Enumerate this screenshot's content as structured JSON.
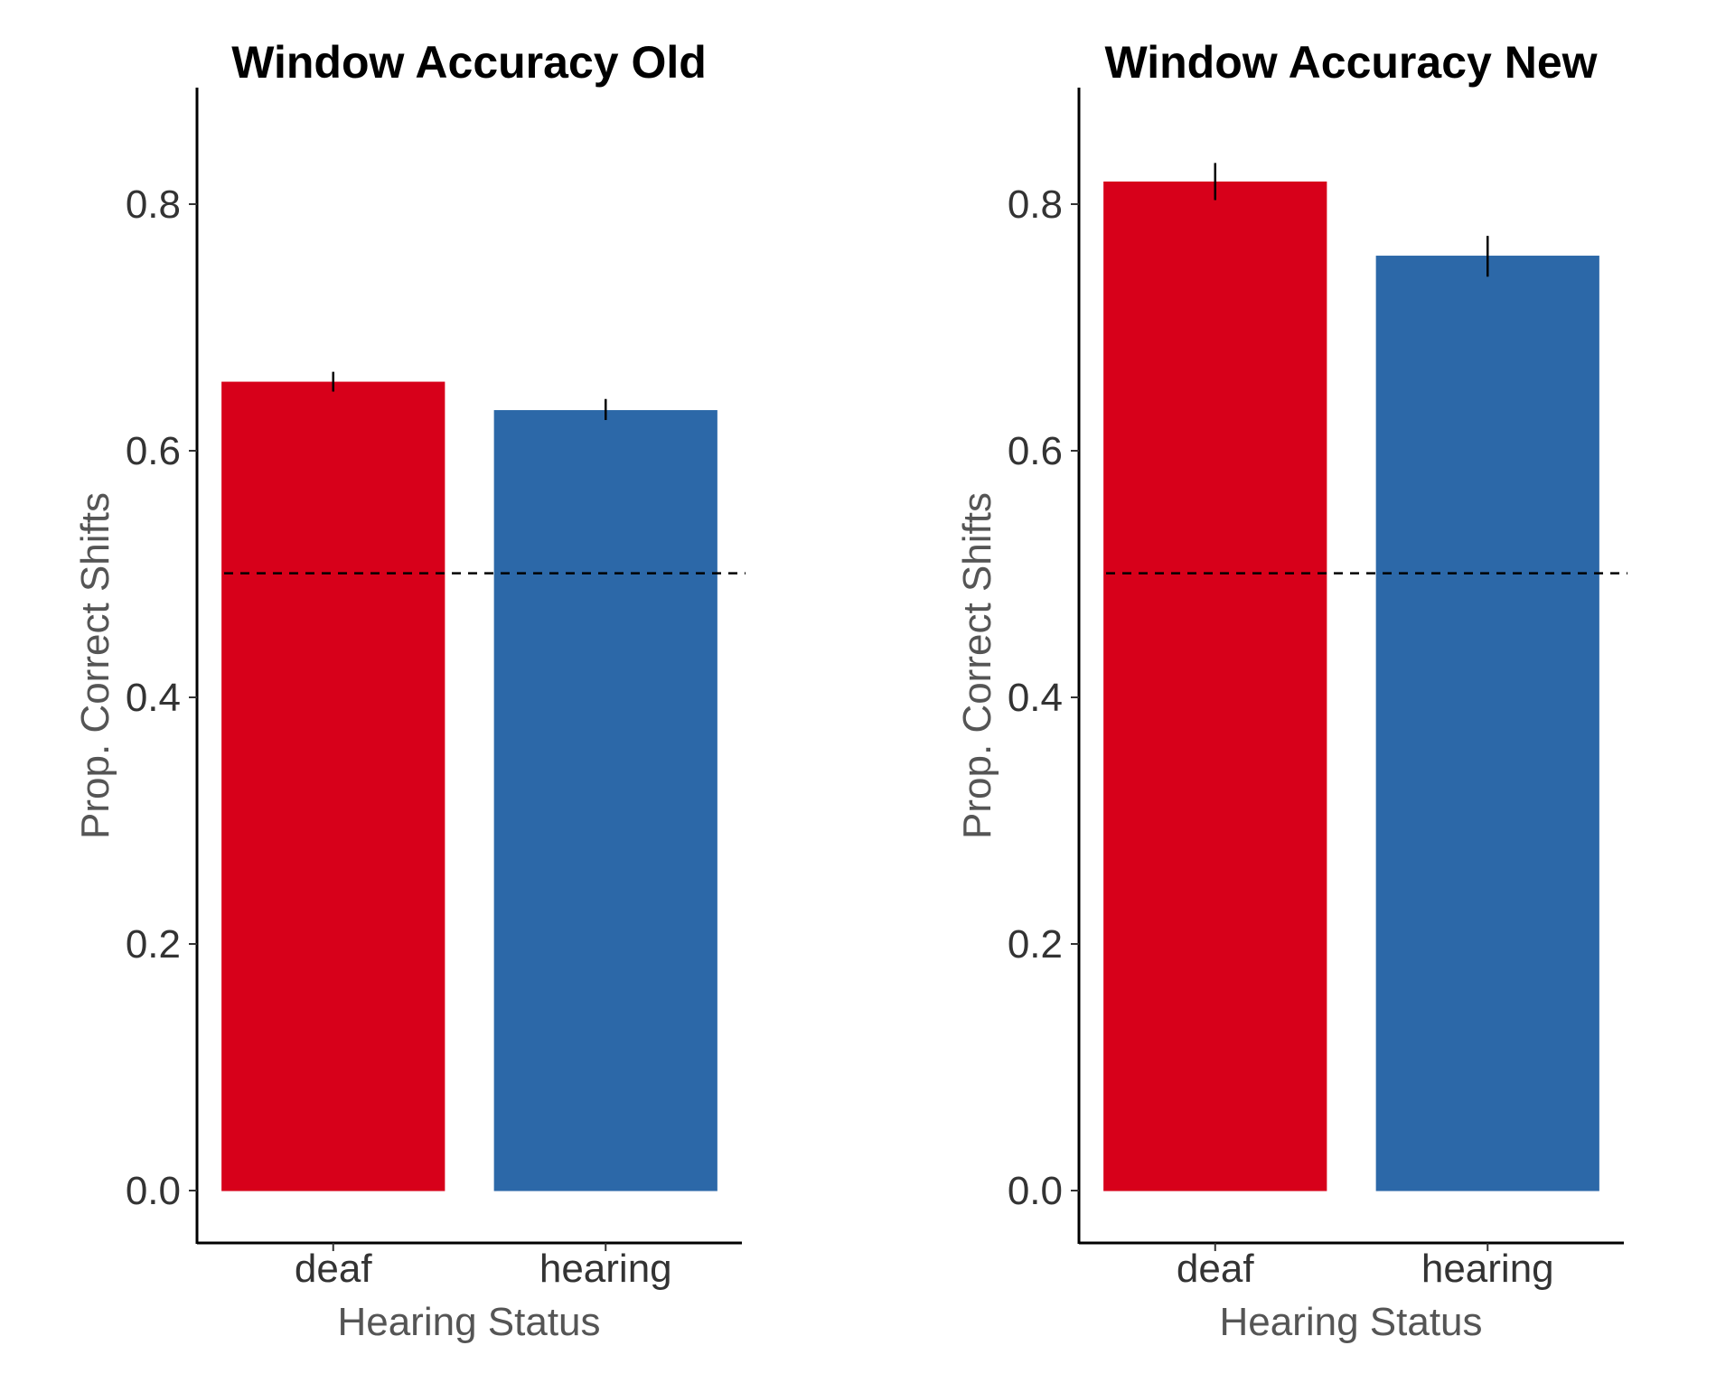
{
  "chart_data": [
    {
      "type": "bar",
      "title": "Window Accuracy Old",
      "xlabel": "Hearing Status",
      "ylabel": "Prop. Correct Shifts",
      "categories": [
        "deaf",
        "hearing"
      ],
      "values": [
        0.655,
        0.632
      ],
      "error": [
        [
          0.647,
          0.663
        ],
        [
          0.624,
          0.641
        ]
      ],
      "colors": [
        "#d7001a",
        "#2c68a8"
      ],
      "reference_line": 0.5,
      "yticks": [
        "0.0",
        "0.2",
        "0.4",
        "0.6",
        "0.8"
      ],
      "ylim": [
        -0.042,
        0.893
      ],
      "grid": false,
      "legend": "none"
    },
    {
      "type": "bar",
      "title": "Window Accuracy New",
      "xlabel": "Hearing Status",
      "ylabel": "Prop. Correct Shifts",
      "categories": [
        "deaf",
        "hearing"
      ],
      "values": [
        0.817,
        0.757
      ],
      "error": [
        [
          0.802,
          0.832
        ],
        [
          0.74,
          0.773
        ]
      ],
      "colors": [
        "#d7001a",
        "#2c68a8"
      ],
      "reference_line": 0.5,
      "yticks": [
        "0.0",
        "0.2",
        "0.4",
        "0.6",
        "0.8"
      ],
      "ylim": [
        -0.042,
        0.893
      ],
      "grid": false,
      "legend": "none"
    }
  ]
}
